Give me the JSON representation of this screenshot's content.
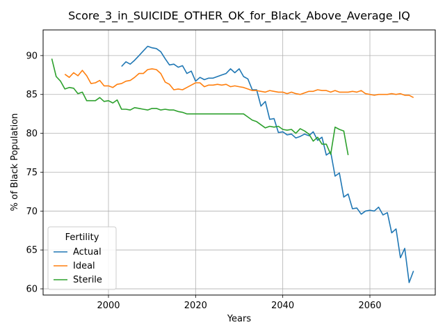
{
  "chart_data": {
    "type": "line",
    "title": "Score_3_in_SUICIDE_OTHER_OK_for_Black_Above_Average_IQ",
    "xlabel": "Years",
    "ylabel": "% of Black Population",
    "xlim": [
      1985,
      2075
    ],
    "ylim": [
      59.2,
      93.3
    ],
    "xticks": [
      2000,
      2020,
      2040,
      2060
    ],
    "yticks": [
      60,
      65,
      70,
      75,
      80,
      85,
      90
    ],
    "grid": true,
    "legend": {
      "title": "Fertility",
      "placement": "lower-left"
    },
    "series": [
      {
        "name": "Actual",
        "color": "#1f77b4",
        "x": [
          2003,
          2004,
          2005,
          2006,
          2007,
          2008,
          2009,
          2010,
          2011,
          2012,
          2013,
          2014,
          2015,
          2016,
          2017,
          2018,
          2019,
          2020,
          2021,
          2022,
          2023,
          2024,
          2025,
          2026,
          2027,
          2028,
          2029,
          2030,
          2031,
          2032,
          2033,
          2034,
          2035,
          2036,
          2037,
          2038,
          2039,
          2040,
          2041,
          2042,
          2043,
          2044,
          2045,
          2046,
          2047,
          2048,
          2049,
          2050,
          2051,
          2052,
          2053,
          2054,
          2055,
          2056,
          2057,
          2058,
          2059,
          2060,
          2061,
          2062,
          2063,
          2064,
          2065,
          2066,
          2067,
          2068,
          2069,
          2070
        ],
        "values": [
          88.6,
          89.2,
          88.9,
          89.4,
          90.0,
          90.6,
          91.2,
          91.0,
          90.9,
          90.5,
          89.6,
          88.8,
          88.9,
          88.5,
          88.7,
          87.7,
          88.0,
          86.7,
          87.2,
          86.9,
          87.1,
          87.1,
          87.3,
          87.5,
          87.7,
          88.3,
          87.8,
          88.3,
          87.3,
          87.0,
          85.6,
          85.6,
          83.5,
          84.1,
          81.8,
          81.9,
          80.1,
          80.2,
          79.8,
          79.9,
          79.4,
          79.6,
          79.9,
          79.7,
          80.2,
          79.1,
          79.5,
          77.2,
          77.6,
          74.5,
          74.9,
          71.8,
          72.2,
          70.3,
          70.4,
          69.6,
          70.0,
          70.1,
          70.0,
          70.5,
          69.5,
          69.8,
          67.2,
          67.7,
          64.0,
          65.2,
          60.8,
          62.3
        ]
      },
      {
        "name": "Ideal",
        "color": "#ff7f0e",
        "x": [
          1990,
          1991,
          1992,
          1993,
          1994,
          1995,
          1996,
          1997,
          1998,
          1999,
          2000,
          2001,
          2002,
          2003,
          2004,
          2005,
          2006,
          2007,
          2008,
          2009,
          2010,
          2011,
          2012,
          2013,
          2014,
          2015,
          2016,
          2017,
          2018,
          2019,
          2020,
          2021,
          2022,
          2023,
          2024,
          2025,
          2026,
          2027,
          2028,
          2029,
          2030,
          2031,
          2032,
          2033,
          2034,
          2035,
          2036,
          2037,
          2038,
          2039,
          2040,
          2041,
          2042,
          2043,
          2044,
          2045,
          2046,
          2047,
          2048,
          2049,
          2050,
          2051,
          2052,
          2053,
          2054,
          2055,
          2056,
          2057,
          2058,
          2059,
          2060,
          2061,
          2062,
          2063,
          2064,
          2065,
          2066,
          2067,
          2068,
          2069,
          2070
        ],
        "values": [
          87.6,
          87.2,
          87.8,
          87.4,
          88.1,
          87.4,
          86.4,
          86.5,
          86.8,
          86.1,
          86.1,
          85.9,
          86.3,
          86.4,
          86.7,
          86.8,
          87.2,
          87.7,
          87.7,
          88.2,
          88.3,
          88.2,
          87.7,
          86.6,
          86.3,
          85.6,
          85.7,
          85.6,
          85.9,
          86.2,
          86.5,
          86.5,
          86.0,
          86.2,
          86.2,
          86.3,
          86.2,
          86.3,
          86.0,
          86.1,
          86.0,
          85.9,
          85.7,
          85.5,
          85.5,
          85.4,
          85.3,
          85.5,
          85.4,
          85.3,
          85.3,
          85.1,
          85.3,
          85.1,
          85.0,
          85.2,
          85.4,
          85.4,
          85.6,
          85.5,
          85.5,
          85.3,
          85.5,
          85.3,
          85.3,
          85.3,
          85.4,
          85.3,
          85.5,
          85.1,
          85.0,
          84.9,
          85.0,
          85.0,
          85.0,
          85.1,
          85.0,
          85.1,
          84.9,
          84.9,
          84.6
        ]
      },
      {
        "name": "Sterile",
        "color": "#2ca02c",
        "x": [
          1987,
          1988,
          1989,
          1990,
          1991,
          1992,
          1993,
          1994,
          1995,
          1996,
          1997,
          1998,
          1999,
          2000,
          2001,
          2002,
          2003,
          2004,
          2005,
          2006,
          2007,
          2008,
          2009,
          2010,
          2011,
          2012,
          2013,
          2014,
          2015,
          2016,
          2017,
          2018,
          2019,
          2020,
          2021,
          2022,
          2023,
          2024,
          2025,
          2026,
          2027,
          2028,
          2029,
          2030,
          2031,
          2032,
          2033,
          2034,
          2035,
          2036,
          2037,
          2038,
          2039,
          2040,
          2041,
          2042,
          2043,
          2044,
          2045,
          2046,
          2047,
          2048,
          2049,
          2050,
          2051,
          2052,
          2053,
          2054,
          2055
        ],
        "values": [
          89.6,
          87.3,
          86.7,
          85.7,
          85.9,
          85.8,
          85.1,
          85.3,
          84.2,
          84.2,
          84.2,
          84.6,
          84.1,
          84.2,
          83.9,
          84.3,
          83.1,
          83.1,
          83.0,
          83.3,
          83.2,
          83.1,
          83.0,
          83.2,
          83.2,
          83.0,
          83.1,
          83.0,
          83.0,
          82.8,
          82.7,
          82.5,
          82.5,
          82.5,
          82.5,
          82.5,
          82.5,
          82.5,
          82.5,
          82.5,
          82.5,
          82.5,
          82.5,
          82.5,
          82.5,
          82.1,
          81.7,
          81.5,
          81.1,
          80.7,
          80.9,
          80.8,
          80.9,
          80.5,
          80.4,
          80.5,
          80.0,
          80.6,
          80.3,
          79.9,
          79.0,
          79.5,
          78.6,
          78.6,
          77.3,
          80.8,
          80.5,
          80.3,
          77.2
        ]
      }
    ]
  }
}
